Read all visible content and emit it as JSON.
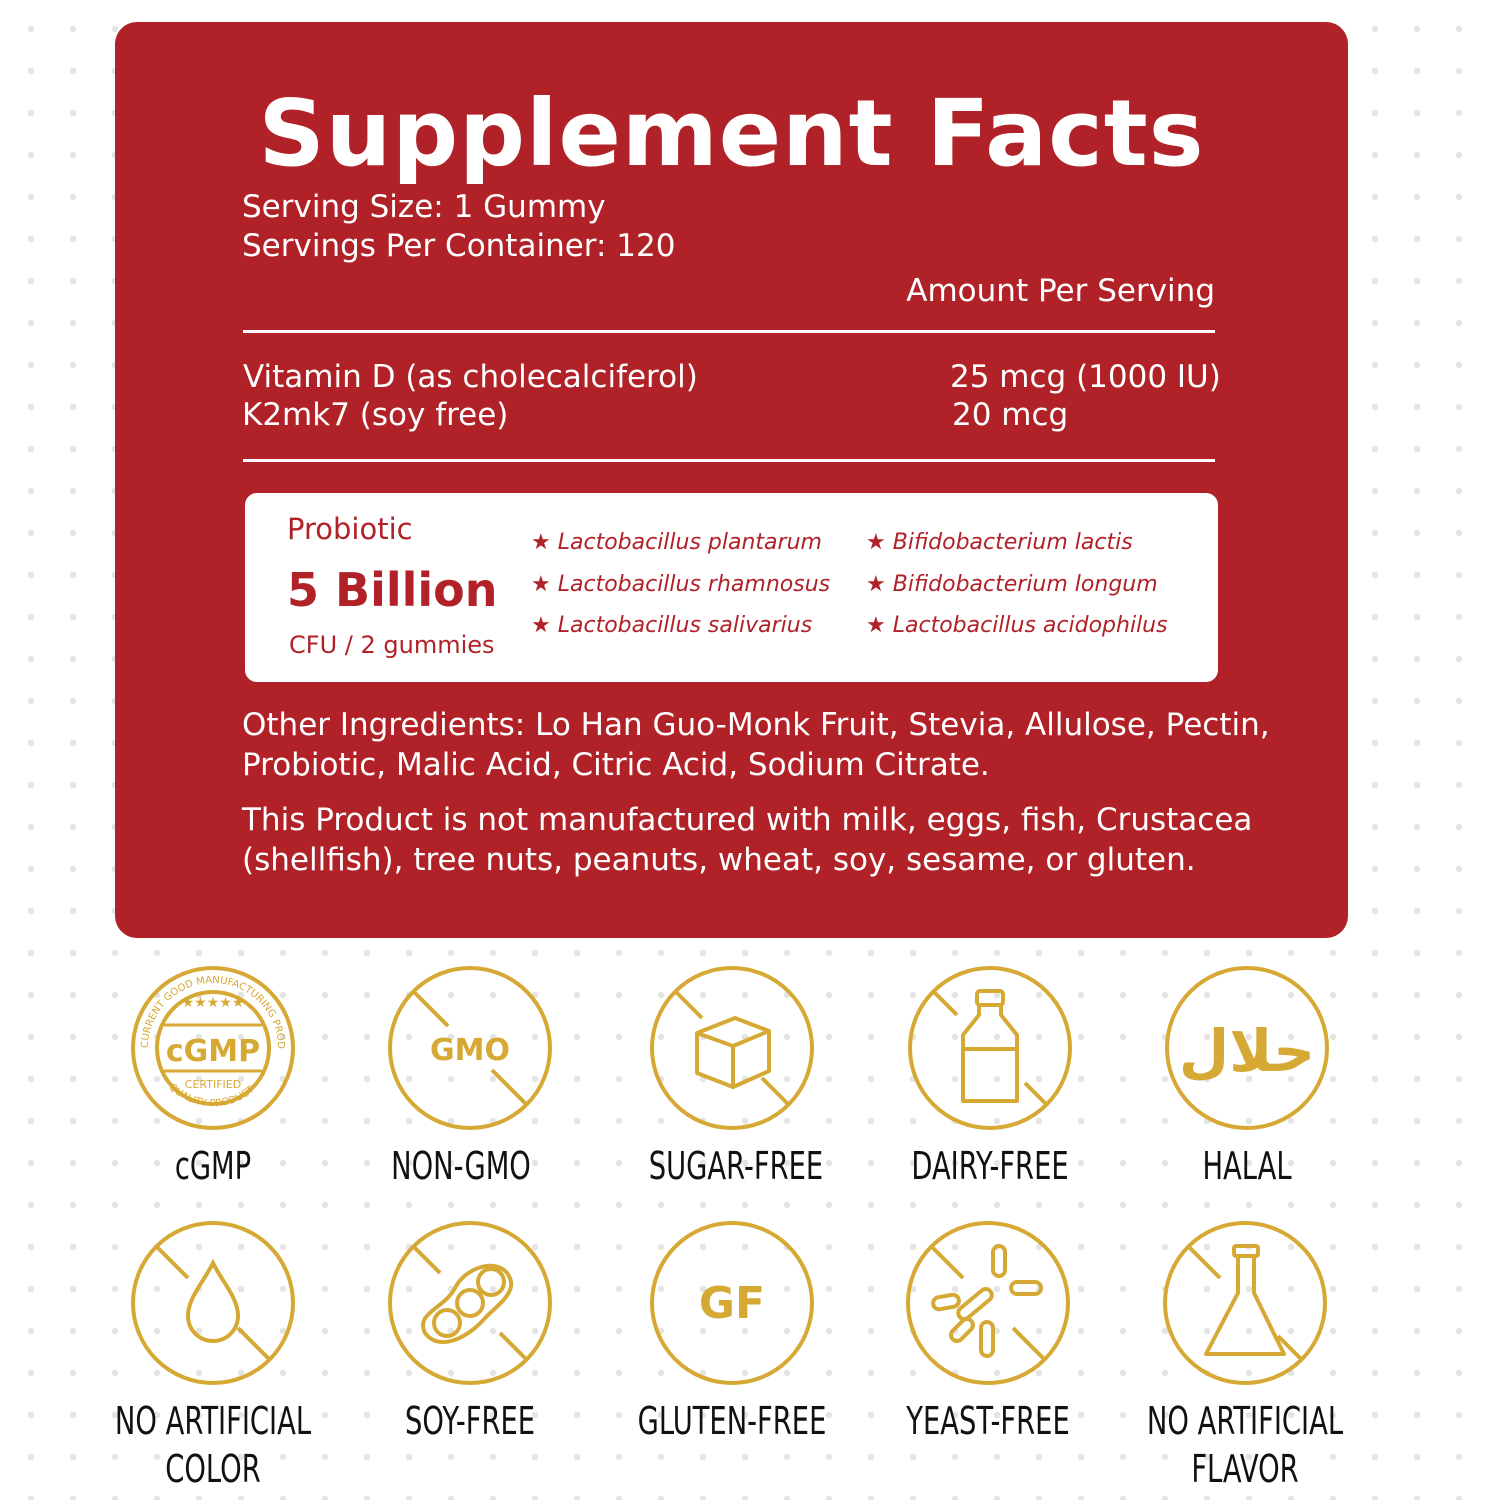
{
  "title": "Supplement Facts",
  "serving_size": "Serving Size: 1 Gummy",
  "servings_per_container": "Servings Per Container: 120",
  "amount_header": "Amount Per Serving",
  "nutrients": [
    {
      "name": "Vitamin D (as cholecalciferol)",
      "amount": "25 mcg (1000 IU)"
    },
    {
      "name": "K2mk7 (soy free)",
      "amount": "20 mcg"
    }
  ],
  "probiotic": {
    "label": "Probiotic",
    "amount": "5 Billion",
    "unit": "CFU / 2 gummies",
    "strains": [
      "Lactobacillus plantarum",
      "Lactobacillus rhamnosus",
      "Lactobacillus salivarius",
      "Bifidobacterium lactis",
      "Bifidobacterium longum",
      "Lactobacillus acidophilus"
    ],
    "star": "★"
  },
  "other_ingredients": [
    "Other Ingredients: Lo Han Guo-Monk Fruit, Stevia, Allulose, Pectin,",
    "Probiotic, Malic Acid, Citric Acid, Sodium Citrate."
  ],
  "allergen_statement": [
    "This Product is not manufactured with milk, eggs, fish, Crustacea",
    "(shellfish), tree nuts, peanuts, wheat, soy, sesame, or gluten."
  ],
  "badges": [
    {
      "label": "cGMP",
      "icon": "cgmp-seal-icon",
      "seal_text": {
        "top": "CURRENT GOOD MANUFACTURING PRODUCT",
        "center": "cGMP",
        "sub": "CERTIFIED",
        "bottom": "QUALITY PRODUCT"
      }
    },
    {
      "label": "NON-GMO",
      "icon": "no-gmo-icon",
      "icon_text": "GMO"
    },
    {
      "label": "SUGAR-FREE",
      "icon": "no-sugar-cube-icon"
    },
    {
      "label": "DAIRY-FREE",
      "icon": "no-milk-bottle-icon"
    },
    {
      "label": "HALAL",
      "icon": "halal-icon",
      "icon_text": "حلال"
    },
    {
      "label": [
        "NO ARTIFICIAL",
        "COLOR"
      ],
      "icon": "no-color-drop-icon"
    },
    {
      "label": "SOY-FREE",
      "icon": "no-soybean-icon"
    },
    {
      "label": "GLUTEN-FREE",
      "icon": "gluten-free-icon",
      "icon_text": "GF"
    },
    {
      "label": "YEAST-FREE",
      "icon": "no-yeast-icon"
    },
    {
      "label": [
        "NO ARTIFICIAL",
        "FLAVOR"
      ],
      "icon": "no-flavor-flask-icon"
    }
  ],
  "colors": {
    "panel": "#b02228",
    "gold": "#d6a935",
    "text_light": "#ffffff",
    "label_text": "#111111"
  }
}
